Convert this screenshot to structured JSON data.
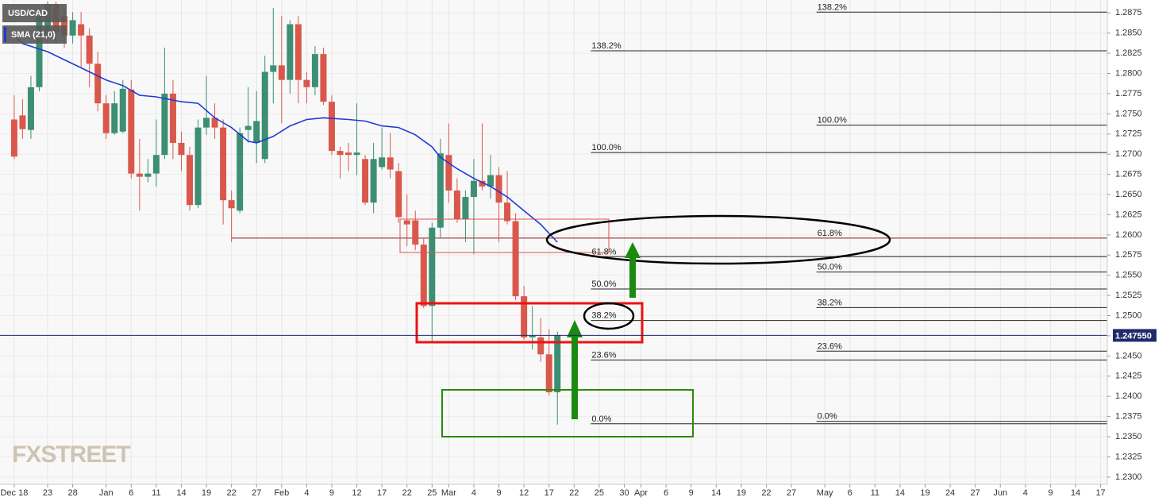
{
  "chart_data": {
    "type": "candlestick",
    "title": "USD/CAD",
    "watermark": "FXSTREET",
    "up_color": "#3d8f73",
    "down_color": "#d9584b",
    "grid": true,
    "x": [
      0,
      1,
      2,
      3,
      4,
      5,
      6,
      7,
      8,
      9,
      10,
      11,
      12,
      13,
      14,
      15,
      16,
      17,
      18,
      19,
      20,
      21,
      22,
      23,
      24,
      25,
      26,
      27,
      28,
      29,
      30,
      31,
      32,
      33,
      34,
      35,
      36,
      37,
      38,
      39,
      40,
      41,
      42,
      43,
      44,
      45,
      46,
      47,
      48,
      49,
      50,
      51,
      52,
      53,
      54,
      55,
      56,
      57,
      58,
      59,
      60,
      61,
      62,
      63,
      64,
      65
    ],
    "open": [
      1.2743,
      1.2748,
      1.273,
      1.2783,
      1.2847,
      1.2886,
      1.2871,
      1.2847,
      1.2861,
      1.2847,
      1.2812,
      1.2763,
      1.2726,
      1.2728,
      1.278,
      1.2676,
      1.2672,
      1.2676,
      1.2699,
      1.2775,
      1.2714,
      1.2699,
      1.2637,
      1.2733,
      1.2745,
      1.2733,
      1.2643,
      1.263,
      1.273,
      1.2714,
      1.2694,
      1.2802,
      1.281,
      1.2792,
      1.2861,
      1.2792,
      1.2783,
      1.2824,
      1.2765,
      1.2704,
      1.2702,
      1.2699,
      1.2694,
      1.264,
      1.2684,
      1.2696,
      1.2679,
      1.2618,
      1.2618,
      1.2588,
      1.2512,
      1.2609,
      1.2699,
      1.2655,
      1.262,
      1.2647,
      1.2667,
      1.266,
      1.2674,
      1.264,
      1.2617,
      1.2524,
      1.2473,
      1.2473,
      1.2452,
      1.2405
    ],
    "high": [
      1.2773,
      1.2768,
      1.2797,
      1.2881,
      1.2889,
      1.2889,
      1.2881,
      1.2876,
      1.2876,
      1.2856,
      1.2827,
      1.2773,
      1.2778,
      1.2792,
      1.2792,
      1.2719,
      1.2694,
      1.2743,
      1.2832,
      1.2792,
      1.2728,
      1.2709,
      1.2743,
      1.2797,
      1.2763,
      1.2743,
      1.2655,
      1.2733,
      1.2783,
      1.2778,
      1.2822,
      1.2881,
      1.2871,
      1.2866,
      1.2871,
      1.2802,
      1.2834,
      1.2832,
      1.2773,
      1.2709,
      1.2714,
      1.2763,
      1.2699,
      1.2714,
      1.2733,
      1.2726,
      1.2689,
      1.265,
      1.263,
      1.2596,
      1.2615,
      1.2719,
      1.2738,
      1.267,
      1.2655,
      1.2694,
      1.2738,
      1.2699,
      1.2684,
      1.2679,
      1.2627,
      1.2537,
      1.2512,
      1.2497,
      1.2483,
      1.248
    ],
    "low": [
      1.2694,
      1.2719,
      1.2719,
      1.2778,
      1.2837,
      1.2837,
      1.2832,
      1.2837,
      1.2807,
      1.2783,
      1.2753,
      1.2719,
      1.2724,
      1.2726,
      1.267,
      1.263,
      1.2665,
      1.266,
      1.2694,
      1.2694,
      1.2679,
      1.263,
      1.2633,
      1.2724,
      1.2719,
      1.2613,
      1.2591,
      1.2627,
      1.2714,
      1.2689,
      1.2689,
      1.2763,
      1.2738,
      1.2775,
      1.2763,
      1.2763,
      1.2773,
      1.2761,
      1.2699,
      1.267,
      1.2679,
      1.2674,
      1.2637,
      1.2627,
      1.2681,
      1.267,
      1.2615,
      1.2586,
      1.2581,
      1.2509,
      1.2468,
      1.2596,
      1.264,
      1.2615,
      1.2591,
      1.2576,
      1.2655,
      1.2645,
      1.2591,
      1.2613,
      1.2519,
      1.247,
      1.2458,
      1.2443,
      1.2401,
      1.2365
    ],
    "close": [
      1.2697,
      1.2731,
      1.2783,
      1.2871,
      1.2886,
      1.2851,
      1.2847,
      1.2866,
      1.2847,
      1.2812,
      1.2763,
      1.2726,
      1.2763,
      1.2781,
      1.2676,
      1.2672,
      1.2676,
      1.2699,
      1.2775,
      1.2714,
      1.2699,
      1.2637,
      1.2733,
      1.2745,
      1.2733,
      1.2643,
      1.2633,
      1.2726,
      1.2735,
      1.2741,
      1.2802,
      1.281,
      1.2792,
      1.2861,
      1.2792,
      1.2783,
      1.2824,
      1.2765,
      1.2704,
      1.2699,
      1.2699,
      1.2702,
      1.264,
      1.2694,
      1.2696,
      1.2681,
      1.2622,
      1.2613,
      1.2588,
      1.2512,
      1.2609,
      1.2701,
      1.2655,
      1.262,
      1.2647,
      1.2667,
      1.266,
      1.2674,
      1.264,
      1.2617,
      1.2524,
      1.2473,
      1.2475,
      1.2452,
      1.2405,
      1.2476
    ],
    "sma": {
      "name": "SMA (21,0)",
      "color": "#1f3ad6",
      "x": [
        0,
        1,
        4,
        8,
        11,
        13,
        15,
        17,
        20,
        22,
        24,
        26,
        28,
        29,
        31,
        33,
        35,
        37,
        40,
        42,
        44,
        46,
        48,
        50,
        51,
        53,
        55,
        57,
        59,
        61,
        63,
        65
      ],
      "values": [
        1.2847,
        1.2837,
        1.2827,
        1.2807,
        1.2792,
        1.2785,
        1.2773,
        1.2771,
        1.2765,
        1.2763,
        1.2745,
        1.2733,
        1.2716,
        1.2714,
        1.2722,
        1.2735,
        1.2743,
        1.2745,
        1.2743,
        1.2741,
        1.2735,
        1.2733,
        1.2724,
        1.2709,
        1.2696,
        1.2682,
        1.267,
        1.266,
        1.2647,
        1.263,
        1.2613,
        1.2591
      ]
    },
    "fibonacci": [
      {
        "start": 69,
        "levels": [
          {
            "label": "138.2%",
            "value": 1.2828
          },
          {
            "label": "100.0%",
            "value": 1.2702
          },
          {
            "label": "61.8%",
            "value": 1.2573
          },
          {
            "label": "50.0%",
            "value": 1.2533
          },
          {
            "label": "38.2%",
            "value": 1.2494
          },
          {
            "label": "23.6%",
            "value": 1.2445
          },
          {
            "label": "0.0%",
            "value": 1.2366
          }
        ]
      },
      {
        "start": 96,
        "levels": [
          {
            "label": "138.2%",
            "value": 1.2876
          },
          {
            "label": "100.0%",
            "value": 1.2736
          },
          {
            "label": "61.8%",
            "value": 1.2596,
            "line_start": 26,
            "color": "#8b1a1a"
          },
          {
            "label": "50.0%",
            "value": 1.2554
          },
          {
            "label": "38.2%",
            "value": 1.251
          },
          {
            "label": "23.6%",
            "value": 1.2456
          },
          {
            "label": "0.0%",
            "value": 1.2369
          }
        ]
      }
    ],
    "last_price": {
      "value": 1.24755,
      "label": "1.247550",
      "color": "#1f2a6b"
    },
    "xlim": [
      -1.7,
      130.8
    ],
    "xticks": [
      {
        "value": 0,
        "label": "Dec 18"
      },
      {
        "value": 4,
        "label": "23"
      },
      {
        "value": 7,
        "label": "28"
      },
      {
        "value": 11,
        "label": "Jan"
      },
      {
        "value": 14,
        "label": "6"
      },
      {
        "value": 17,
        "label": "11"
      },
      {
        "value": 20,
        "label": "14"
      },
      {
        "value": 23,
        "label": "19"
      },
      {
        "value": 26,
        "label": "22"
      },
      {
        "value": 29,
        "label": "27"
      },
      {
        "value": 32,
        "label": "Feb"
      },
      {
        "value": 35,
        "label": "4"
      },
      {
        "value": 38,
        "label": "9"
      },
      {
        "value": 41,
        "label": "12"
      },
      {
        "value": 44,
        "label": "17"
      },
      {
        "value": 47,
        "label": "22"
      },
      {
        "value": 50,
        "label": "25"
      },
      {
        "value": 52,
        "label": "Mar"
      },
      {
        "value": 55,
        "label": "4"
      },
      {
        "value": 58,
        "label": "9"
      },
      {
        "value": 61,
        "label": "12"
      },
      {
        "value": 64,
        "label": "17"
      },
      {
        "value": 67,
        "label": "22"
      },
      {
        "value": 70,
        "label": "25"
      },
      {
        "value": 73,
        "label": "30"
      },
      {
        "value": 75,
        "label": "Apr"
      },
      {
        "value": 78,
        "label": "6"
      },
      {
        "value": 81,
        "label": "9"
      },
      {
        "value": 84,
        "label": "14"
      },
      {
        "value": 87,
        "label": "19"
      },
      {
        "value": 90,
        "label": "22"
      },
      {
        "value": 93,
        "label": "27"
      },
      {
        "value": 97,
        "label": "May"
      },
      {
        "value": 100,
        "label": "6"
      },
      {
        "value": 103,
        "label": "11"
      },
      {
        "value": 106,
        "label": "14"
      },
      {
        "value": 109,
        "label": "19"
      },
      {
        "value": 112,
        "label": "24"
      },
      {
        "value": 115,
        "label": "27"
      },
      {
        "value": 118,
        "label": "Jun"
      },
      {
        "value": 121,
        "label": "4"
      },
      {
        "value": 124,
        "label": "9"
      },
      {
        "value": 127,
        "label": "14"
      },
      {
        "value": 130,
        "label": "17"
      }
    ],
    "ylim": [
      1.2291,
      1.2891
    ],
    "yticks": [
      {
        "value": 1.23,
        "label": "1.2300"
      },
      1.2325,
      {
        "value": 1.235,
        "label": "1.2350"
      },
      1.2375,
      {
        "value": 1.24,
        "label": "1.2400"
      },
      1.2425,
      {
        "value": 1.245,
        "label": "1.2450"
      },
      1.2475,
      {
        "value": 1.25,
        "label": "1.2500"
      },
      1.2525,
      {
        "value": 1.255,
        "label": "1.2550"
      },
      1.2575,
      {
        "value": 1.26,
        "label": "1.2600"
      },
      1.2625,
      {
        "value": 1.265,
        "label": "1.2650"
      },
      1.2675,
      {
        "value": 1.27,
        "label": "1.2700"
      },
      1.2725,
      {
        "value": 1.275,
        "label": "1.2750"
      },
      1.2775,
      {
        "value": 1.28,
        "label": "1.2800"
      },
      1.2825,
      {
        "value": 1.285,
        "label": "1.2850"
      },
      1.2875
    ]
  }
}
